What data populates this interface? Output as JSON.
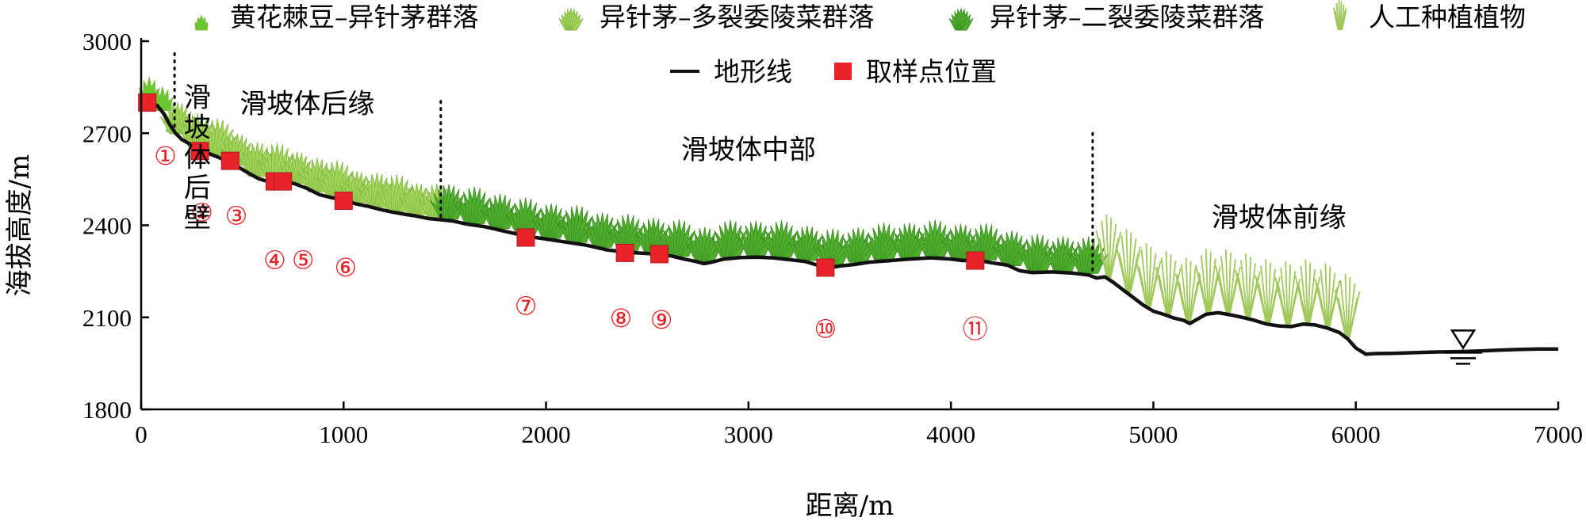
{
  "chart_data": {
    "type": "line",
    "xlabel": "距离/m",
    "ylabel": "海拔高度/m",
    "xlim": [
      0,
      7000
    ],
    "ylim": [
      1800,
      3000
    ],
    "x_ticks": [
      0,
      1000,
      2000,
      3000,
      4000,
      5000,
      6000,
      7000
    ],
    "y_ticks": [
      1800,
      2100,
      2400,
      2700,
      3000
    ],
    "legend": {
      "placement": "top",
      "items": [
        {
          "label": "黄花棘豆–异针茅群落",
          "icon": "sparse-bright-green-grass-icon",
          "color": "#66cc2e"
        },
        {
          "label": "异针茅–多裂委陵菜群落",
          "icon": "light-green-grass-icon",
          "color": "#a3d45a"
        },
        {
          "label": "异针茅–二裂委陵菜群落",
          "icon": "dark-green-grass-icon",
          "color": "#4fae2c"
        },
        {
          "label": "人工种植植物",
          "icon": "thin-reed-grass-icon",
          "color": "#a0c85a"
        },
        {
          "label": "地形线",
          "icon": "black-line-icon",
          "color": "#111111"
        },
        {
          "label": "取样点位置",
          "icon": "red-square-icon",
          "color": "#e8232a"
        }
      ]
    },
    "terrain_series": {
      "name": "地形线",
      "x": [
        0,
        40,
        80,
        110,
        140,
        170,
        200,
        240,
        280,
        330,
        380,
        430,
        480,
        530,
        580,
        640,
        700,
        760,
        820,
        880,
        940,
        1000,
        1060,
        1120,
        1180,
        1240,
        1300,
        1360,
        1420,
        1480,
        1540,
        1600,
        1700,
        1800,
        1900,
        2000,
        2100,
        2200,
        2300,
        2400,
        2500,
        2560,
        2620,
        2680,
        2740,
        2780,
        2820,
        2880,
        2960,
        3040,
        3120,
        3200,
        3280,
        3340,
        3400,
        3460,
        3520,
        3600,
        3700,
        3800,
        3900,
        4000,
        4060,
        4120,
        4200,
        4280,
        4340,
        4400,
        4500,
        4600,
        4680,
        4720,
        4760,
        4800,
        4850,
        4900,
        4950,
        5000,
        5050,
        5100,
        5150,
        5180,
        5220,
        5260,
        5320,
        5380,
        5440,
        5500,
        5560,
        5620,
        5680,
        5740,
        5800,
        5860,
        5920,
        5960,
        6000,
        6050,
        6100,
        6200,
        6300,
        6400,
        6500,
        6600,
        6700,
        6800,
        6900,
        7000
      ],
      "y": [
        2800,
        2800,
        2790,
        2765,
        2730,
        2700,
        2680,
        2665,
        2648,
        2635,
        2622,
        2607,
        2590,
        2570,
        2552,
        2540,
        2545,
        2535,
        2520,
        2500,
        2490,
        2482,
        2470,
        2462,
        2452,
        2443,
        2436,
        2430,
        2422,
        2418,
        2414,
        2405,
        2395,
        2380,
        2365,
        2355,
        2345,
        2335,
        2320,
        2312,
        2308,
        2305,
        2300,
        2290,
        2282,
        2275,
        2280,
        2290,
        2295,
        2296,
        2294,
        2288,
        2282,
        2270,
        2262,
        2268,
        2272,
        2280,
        2285,
        2290,
        2294,
        2290,
        2285,
        2288,
        2278,
        2270,
        2252,
        2246,
        2248,
        2244,
        2238,
        2228,
        2232,
        2215,
        2190,
        2165,
        2140,
        2120,
        2110,
        2098,
        2090,
        2080,
        2095,
        2110,
        2115,
        2108,
        2100,
        2090,
        2078,
        2072,
        2070,
        2078,
        2075,
        2065,
        2050,
        2030,
        2000,
        1980,
        1982,
        1983,
        1985,
        1987,
        1988,
        1990,
        1993,
        1995,
        1997,
        1997
      ]
    },
    "sampling_points": [
      {
        "label": "①",
        "x": 30,
        "y": 2800
      },
      {
        "label": "②",
        "x": 290,
        "y": 2642
      },
      {
        "label": "③",
        "x": 440,
        "y": 2610
      },
      {
        "label": "④",
        "x": 660,
        "y": 2543
      },
      {
        "label": "⑤",
        "x": 700,
        "y": 2543
      },
      {
        "label": "⑥",
        "x": 1000,
        "y": 2480
      },
      {
        "label": "⑦",
        "x": 1900,
        "y": 2360
      },
      {
        "label": "⑧",
        "x": 2390,
        "y": 2310
      },
      {
        "label": "⑨",
        "x": 2560,
        "y": 2306
      },
      {
        "label": "⑩",
        "x": 3380,
        "y": 2262
      },
      {
        "label": "⑪",
        "x": 4120,
        "y": 2285
      }
    ],
    "sample_label_positions": [
      {
        "label": "①",
        "x": 120,
        "y": 2620
      },
      {
        "label": "②",
        "x": 300,
        "y": 2435
      },
      {
        "label": "③",
        "x": 470,
        "y": 2425
      },
      {
        "label": "④",
        "x": 660,
        "y": 2280
      },
      {
        "label": "⑤",
        "x": 800,
        "y": 2280
      },
      {
        "label": "⑥",
        "x": 1010,
        "y": 2255
      },
      {
        "label": "⑦",
        "x": 1900,
        "y": 2130
      },
      {
        "label": "⑧",
        "x": 2370,
        "y": 2090
      },
      {
        "label": "⑨",
        "x": 2570,
        "y": 2085
      },
      {
        "label": "⑩",
        "x": 3380,
        "y": 2055
      },
      {
        "label": "⑪",
        "x": 4120,
        "y": 2055
      }
    ],
    "zone_boundaries": [
      {
        "x": 165,
        "y_top": 2960
      },
      {
        "x": 1480,
        "y_top": 2805
      },
      {
        "x": 4700,
        "y_top": 2700
      }
    ],
    "zone_labels": [
      {
        "text": "滑坡体后缘",
        "x": 820,
        "y": 2790
      },
      {
        "text": "滑坡体中部",
        "x": 3000,
        "y": 2640
      },
      {
        "text": "滑坡体前缘",
        "x": 5620,
        "y": 2420
      }
    ],
    "back_wall_label": {
      "chars": [
        "滑",
        "坡",
        "体",
        "后",
        "壁"
      ],
      "x": 160,
      "y_start": 2480
    },
    "water_level": {
      "x": 6530,
      "y": 1990
    },
    "vegetation": [
      {
        "type": "bright",
        "x_from": 40,
        "x_to": 170,
        "count": 3
      },
      {
        "type": "light",
        "x_from": 180,
        "x_to": 1460,
        "count": 14
      },
      {
        "type": "dark",
        "x_from": 1520,
        "x_to": 4680,
        "count": 26
      },
      {
        "type": "reed",
        "x_from": 4780,
        "x_to": 5960,
        "count": 13
      }
    ]
  }
}
